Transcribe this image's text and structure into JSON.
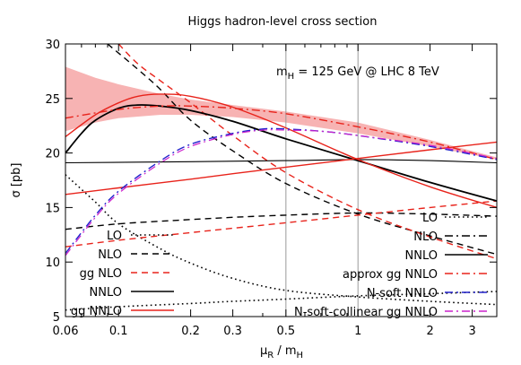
{
  "chart_data": {
    "type": "line",
    "title": "Higgs hadron-level cross section",
    "annotation": {
      "text_prefix": "m",
      "text_sub": "H",
      "text_suffix": " = 125 GeV  @  LHC 8 TeV"
    },
    "xlabel": {
      "main": "μ",
      "sub1": "R",
      "mid": " / m",
      "sub2": "H"
    },
    "ylabel": "σ [pb]",
    "x_scale": "log",
    "xlim": [
      0.06,
      3.8
    ],
    "ylim": [
      5,
      30
    ],
    "x_ticks": [
      {
        "value": 0.06,
        "label": "0.06"
      },
      {
        "value": 0.1,
        "label": "0.1"
      },
      {
        "value": 0.2,
        "label": "0.2"
      },
      {
        "value": 0.3,
        "label": "0.3"
      },
      {
        "value": 0.5,
        "label": "0.5"
      },
      {
        "value": 1,
        "label": "1"
      },
      {
        "value": 2,
        "label": "2"
      },
      {
        "value": 3,
        "label": "3"
      }
    ],
    "x_minor_ticks": [
      0.07,
      0.08,
      0.09,
      0.4,
      0.6,
      0.7,
      0.8,
      0.9
    ],
    "y_ticks": [
      5,
      10,
      15,
      20,
      25,
      30
    ],
    "vertical_lines": [
      0.5,
      1
    ],
    "grid": false,
    "band": {
      "color": "#f7b3b3",
      "x": [
        0.06,
        0.08,
        0.1,
        0.15,
        0.2,
        0.3,
        0.5,
        1,
        2,
        3.8
      ],
      "low": [
        22.0,
        22.8,
        23.2,
        23.5,
        23.5,
        23.3,
        22.8,
        21.8,
        20.6,
        19.4
      ],
      "high": [
        27.9,
        26.9,
        26.3,
        25.4,
        24.9,
        24.4,
        23.8,
        22.8,
        21.2,
        19.6
      ]
    },
    "legend_left": [
      {
        "label": "LO",
        "color": "#000000",
        "dash": "dot"
      },
      {
        "label": "NLO",
        "color": "#000000",
        "dash": "dash"
      },
      {
        "label": "gg NLO",
        "color": "#e8231b",
        "dash": "dash"
      },
      {
        "label": "NNLO",
        "color": "#000000",
        "dash": "solid"
      },
      {
        "label": "gg NNLO",
        "color": "#e8231b",
        "dash": "solid"
      }
    ],
    "legend_right": [
      {
        "label": "LO",
        "color": "#000000",
        "dash": "dot"
      },
      {
        "label": "NLO",
        "color": "#000000",
        "dash": "dashdot"
      },
      {
        "label": "NNLO",
        "color": "#000000",
        "dash": "solid"
      },
      {
        "label": "approx gg NNLO",
        "color": "#e8231b",
        "dash": "dashdot"
      },
      {
        "label": "N-soft NNLO",
        "color": "#2222cc",
        "dash": "dashdot"
      },
      {
        "label": "N-soft-collinear gg NNLO",
        "color": "#cc22cc",
        "dash": "dashdot"
      }
    ],
    "series": [
      {
        "color": "#000000",
        "dash": "dot",
        "width": 1.6,
        "x": [
          0.06,
          0.08,
          0.1,
          0.15,
          0.2,
          0.3,
          0.5,
          1,
          2,
          3.8
        ],
        "y": [
          18.0,
          15.5,
          13.5,
          11.2,
          9.9,
          8.5,
          7.4,
          6.8,
          6.4,
          6.1
        ]
      },
      {
        "color": "#000000",
        "dash": "dot",
        "width": 1.6,
        "x": [
          0.06,
          0.1,
          0.2,
          0.3,
          0.5,
          1,
          2,
          3.8
        ],
        "y": [
          5.6,
          5.9,
          6.2,
          6.4,
          6.6,
          6.9,
          7.1,
          7.3
        ]
      },
      {
        "color": "#000000",
        "dash": "dash",
        "width": 1.4,
        "x": [
          0.09,
          0.12,
          0.15,
          0.2,
          0.3,
          0.5,
          1,
          2,
          3.8
        ],
        "y": [
          30.0,
          27.7,
          25.8,
          23.0,
          20.2,
          17.2,
          14.4,
          12.4,
          10.7
        ]
      },
      {
        "color": "#000000",
        "dash": "dash",
        "width": 1.4,
        "x": [
          0.06,
          0.1,
          0.2,
          0.3,
          0.5,
          1,
          2,
          3.8
        ],
        "y": [
          13.0,
          13.5,
          13.9,
          14.1,
          14.3,
          14.5,
          14.4,
          14.2
        ]
      },
      {
        "color": "#e8231b",
        "dash": "dash",
        "width": 1.4,
        "x": [
          0.1,
          0.12,
          0.15,
          0.2,
          0.3,
          0.5,
          1,
          2,
          3.8
        ],
        "y": [
          30.0,
          28.2,
          26.6,
          24.6,
          21.6,
          18.2,
          14.8,
          12.3,
          10.3
        ]
      },
      {
        "color": "#e8231b",
        "dash": "dash",
        "width": 1.4,
        "x": [
          0.06,
          0.1,
          0.2,
          0.3,
          0.5,
          1,
          2,
          3.8
        ],
        "y": [
          11.4,
          12.0,
          12.7,
          13.1,
          13.6,
          14.3,
          15.0,
          15.6
        ]
      },
      {
        "color": "#000000",
        "dash": "solid",
        "width": 1.8,
        "x": [
          0.06,
          0.07,
          0.08,
          0.1,
          0.12,
          0.15,
          0.2,
          0.3,
          0.5,
          1,
          2,
          3.8
        ],
        "y": [
          20.0,
          21.8,
          23.0,
          24.1,
          24.4,
          24.3,
          23.9,
          22.9,
          21.3,
          19.3,
          17.3,
          15.6
        ]
      },
      {
        "color": "#000000",
        "dash": "solid",
        "width": 1.1,
        "x": [
          0.06,
          0.2,
          0.5,
          1,
          2,
          3.8
        ],
        "y": [
          19.1,
          19.2,
          19.3,
          19.4,
          19.3,
          19.1
        ]
      },
      {
        "color": "#e8231b",
        "dash": "solid",
        "width": 1.4,
        "x": [
          0.06,
          0.08,
          0.1,
          0.12,
          0.15,
          0.2,
          0.3,
          0.5,
          1,
          2,
          3.8
        ],
        "y": [
          21.5,
          23.5,
          24.6,
          25.2,
          25.4,
          25.2,
          24.2,
          22.3,
          19.4,
          16.9,
          15.0
        ]
      },
      {
        "color": "#e8231b",
        "dash": "solid",
        "width": 1.4,
        "x": [
          0.06,
          0.1,
          0.2,
          0.3,
          0.5,
          1,
          2,
          3.8
        ],
        "y": [
          16.2,
          16.8,
          17.6,
          18.1,
          18.7,
          19.5,
          20.3,
          21.0
        ]
      },
      {
        "color": "#e8231b",
        "dash": "dashdot",
        "width": 1.4,
        "x": [
          0.06,
          0.1,
          0.15,
          0.2,
          0.3,
          0.5,
          1,
          2,
          3.8
        ],
        "y": [
          23.2,
          24.0,
          24.3,
          24.3,
          24.1,
          23.6,
          22.4,
          21.0,
          19.4
        ]
      },
      {
        "color": "#2222cc",
        "dash": "dashdot",
        "width": 1.4,
        "x": [
          0.06,
          0.08,
          0.1,
          0.15,
          0.2,
          0.3,
          0.4,
          0.5,
          0.7,
          1,
          2,
          3.8
        ],
        "y": [
          10.8,
          14.3,
          16.5,
          19.3,
          20.8,
          21.8,
          22.2,
          22.2,
          22.0,
          21.6,
          20.6,
          19.4
        ]
      },
      {
        "color": "#cc22cc",
        "dash": "dashdot",
        "width": 1.2,
        "x": [
          0.06,
          0.08,
          0.1,
          0.15,
          0.2,
          0.3,
          0.4,
          0.5,
          0.7,
          1,
          2,
          3.8
        ],
        "y": [
          10.6,
          14.1,
          16.3,
          19.1,
          20.6,
          21.7,
          22.1,
          22.1,
          22.0,
          21.6,
          20.7,
          19.5
        ]
      }
    ]
  }
}
